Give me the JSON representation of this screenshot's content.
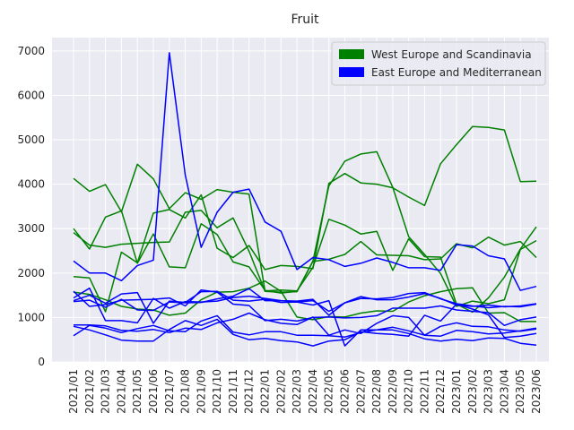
{
  "chart_data": {
    "type": "line",
    "title": "Fruit",
    "xlabel": "",
    "ylabel": "",
    "ylim": [
      0,
      7300
    ],
    "yticks": [
      0,
      1000,
      2000,
      3000,
      4000,
      5000,
      6000,
      7000
    ],
    "grid": true,
    "legend_position": "top-right",
    "background": "#eaeaf2",
    "categories": [
      "2021/01",
      "2021/02",
      "2021/03",
      "2021/04",
      "2021/05",
      "2021/06",
      "2021/07",
      "2021/08",
      "2021/09",
      "2021/10",
      "2021/11",
      "2021/12",
      "2022/01",
      "2022/02",
      "2022/03",
      "2022/04",
      "2022/05",
      "2022/06",
      "2022/07",
      "2022/08",
      "2022/09",
      "2022/10",
      "2022/11",
      "2022/12",
      "2023/01",
      "2023/02",
      "2023/03",
      "2023/04",
      "2023/05",
      "2023/06"
    ],
    "legend": [
      {
        "label": "West Europe and Scandinavia",
        "color": "#008000"
      },
      {
        "label": "East Europe and Mediterranean",
        "color": "#0000ff"
      }
    ],
    "series": [
      {
        "group": 0,
        "color": "#008000",
        "values": [
          4130,
          3840,
          3990,
          3380,
          4450,
          4120,
          3450,
          3810,
          3660,
          3880,
          3820,
          3780,
          1600,
          1620,
          1600,
          2130,
          3210,
          3080,
          2880,
          2940,
          2060,
          2770,
          2370,
          2360,
          1300,
          1120,
          1440,
          1910,
          2540,
          3040
        ]
      },
      {
        "group": 0,
        "color": "#008000",
        "values": [
          3000,
          2540,
          3260,
          3400,
          2220,
          2880,
          2140,
          2120,
          3110,
          2870,
          2250,
          2140,
          1610,
          1550,
          1590,
          2260,
          2310,
          2420,
          2710,
          2410,
          2400,
          2390,
          2300,
          2320,
          2660,
          2570,
          2810,
          2630,
          2710,
          2350
        ]
      },
      {
        "group": 0,
        "color": "#008000",
        "values": [
          2910,
          2630,
          2580,
          2650,
          2670,
          2690,
          2700,
          3370,
          3410,
          3020,
          3240,
          2490,
          1590,
          1570,
          1580,
          2270,
          3960,
          4520,
          4680,
          4730,
          3930,
          2820,
          2420,
          1990,
          1250,
          1370,
          1310,
          1400,
          2530,
          2730
        ]
      },
      {
        "group": 0,
        "color": "#008000",
        "values": [
          1920,
          1890,
          1130,
          2470,
          2230,
          3350,
          3430,
          3240,
          3760,
          2560,
          2350,
          2620,
          2080,
          2170,
          2150,
          2100,
          4020,
          4240,
          4030,
          4000,
          3920,
          3710,
          3520,
          4460,
          4890,
          5300,
          5280,
          5220,
          4060,
          4070
        ]
      },
      {
        "group": 0,
        "color": "#008000",
        "values": [
          1570,
          1520,
          1400,
          1250,
          1190,
          1170,
          1050,
          1100,
          1400,
          1570,
          1580,
          1660,
          1820,
          1590,
          1010,
          950,
          1020,
          1010,
          1100,
          1150,
          1140,
          1350,
          1490,
          1580,
          1650,
          1670,
          1100,
          1110,
          910,
          910
        ]
      },
      {
        "group": 1,
        "color": "#0000ff",
        "values": [
          2270,
          2000,
          2000,
          1830,
          2170,
          2290,
          6960,
          4200,
          2580,
          3370,
          3820,
          3890,
          3150,
          2940,
          2080,
          2350,
          2300,
          2150,
          2220,
          2340,
          2240,
          2120,
          2120,
          2060,
          2640,
          2610,
          2390,
          2320,
          1610,
          1700
        ]
      },
      {
        "group": 1,
        "color": "#0000ff",
        "values": [
          1360,
          1390,
          1230,
          1410,
          1170,
          1160,
          1350,
          1330,
          1340,
          1420,
          1480,
          1650,
          1380,
          1380,
          1350,
          1380,
          1140,
          1330,
          1470,
          1400,
          1400,
          1460,
          1540,
          1430,
          1280,
          1250,
          1280,
          1240,
          1260,
          1310
        ]
      },
      {
        "group": 1,
        "color": "#0000ff",
        "values": [
          1590,
          1250,
          1290,
          1390,
          1400,
          1410,
          1440,
          1260,
          1620,
          1570,
          1300,
          1270,
          930,
          960,
          920,
          1000,
          1010,
          990,
          1000,
          1040,
          1210,
          1210,
          1210,
          1260,
          1170,
          1140,
          1110,
          820,
          950,
          1010
        ]
      },
      {
        "group": 1,
        "color": "#0000ff",
        "values": [
          1440,
          1660,
          930,
          930,
          880,
          1430,
          1210,
          1360,
          1350,
          1370,
          1450,
          1480,
          1430,
          1380,
          1370,
          1410,
          1050,
          1330,
          1430,
          1420,
          1450,
          1540,
          1560,
          1420,
          1310,
          1260,
          1220,
          1250,
          1240,
          1300
        ]
      },
      {
        "group": 1,
        "color": "#0000ff",
        "values": [
          800,
          720,
          610,
          490,
          470,
          470,
          730,
          930,
          820,
          960,
          620,
          500,
          530,
          480,
          450,
          360,
          470,
          500,
          680,
          640,
          620,
          580,
          1050,
          920,
          1300,
          1190,
          1060,
          550,
          580,
          640
        ]
      },
      {
        "group": 1,
        "color": "#0000ff",
        "values": [
          590,
          820,
          760,
          660,
          750,
          820,
          700,
          680,
          920,
          1040,
          670,
          610,
          680,
          680,
          600,
          600,
          590,
          560,
          660,
          720,
          720,
          640,
          520,
          470,
          510,
          480,
          540,
          530,
          420,
          380
        ]
      },
      {
        "group": 1,
        "color": "#0000ff",
        "values": [
          1380,
          1500,
          1320,
          1530,
          1560,
          870,
          1370,
          1340,
          1580,
          1590,
          1390,
          1370,
          1410,
          1340,
          1350,
          1280,
          1380,
          360,
          720,
          720,
          780,
          700,
          600,
          580,
          710,
          680,
          630,
          650,
          700,
          760
        ]
      },
      {
        "group": 1,
        "color": "#0000ff",
        "values": [
          830,
          830,
          810,
          710,
          690,
          730,
          660,
          760,
          730,
          880,
          960,
          1100,
          950,
          870,
          840,
          1010,
          600,
          720,
          640,
          870,
          1040,
          1000,
          600,
          800,
          880,
          800,
          790,
          720,
          690,
          740
        ]
      }
    ]
  }
}
